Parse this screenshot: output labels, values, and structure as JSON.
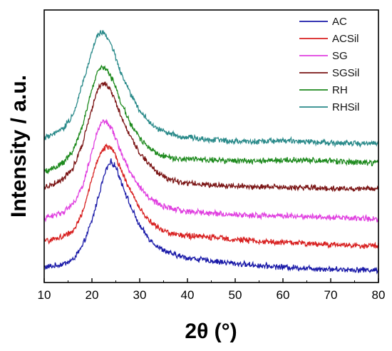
{
  "chart_data": {
    "type": "line",
    "xlabel": "2θ (°)",
    "ylabel": "Intensity / a.u.",
    "xlim": [
      10,
      80
    ],
    "xticks": [
      "10",
      "20",
      "30",
      "40",
      "50",
      "60",
      "70",
      "80"
    ],
    "yticks_shown": false,
    "grid": false,
    "legend_position": "top-right",
    "x": [
      10,
      12,
      14,
      16,
      18,
      20,
      21,
      22,
      23,
      24,
      25,
      26,
      28,
      30,
      32,
      34,
      36,
      38,
      40,
      45,
      50,
      55,
      60,
      65,
      70,
      75,
      80
    ],
    "series": [
      {
        "name": "AC",
        "color": "#1a1aa8",
        "values": [
          0.3,
          0.32,
          0.36,
          0.44,
          0.7,
          1.2,
          1.55,
          1.9,
          2.2,
          2.35,
          2.25,
          2.0,
          1.5,
          1.1,
          0.85,
          0.68,
          0.58,
          0.52,
          0.48,
          0.42,
          0.37,
          0.33,
          0.3,
          0.28,
          0.26,
          0.25,
          0.24
        ]
      },
      {
        "name": "ACSil",
        "color": "#d82020",
        "values": [
          0.8,
          0.84,
          0.9,
          1.0,
          1.35,
          2.0,
          2.35,
          2.55,
          2.65,
          2.62,
          2.45,
          2.2,
          1.8,
          1.45,
          1.2,
          1.05,
          0.97,
          0.93,
          0.91,
          0.88,
          0.84,
          0.8,
          0.78,
          0.76,
          0.74,
          0.72,
          0.71
        ]
      },
      {
        "name": "SG",
        "color": "#e040e0",
        "values": [
          1.25,
          1.3,
          1.38,
          1.52,
          1.85,
          2.55,
          2.9,
          3.1,
          3.12,
          3.02,
          2.8,
          2.55,
          2.15,
          1.85,
          1.65,
          1.52,
          1.45,
          1.41,
          1.38,
          1.35,
          1.32,
          1.3,
          1.3,
          1.29,
          1.27,
          1.25,
          1.24
        ]
      },
      {
        "name": "SGSil",
        "color": "#7a1414",
        "values": [
          1.85,
          1.92,
          2.02,
          2.22,
          2.7,
          3.4,
          3.72,
          3.88,
          3.85,
          3.72,
          3.5,
          3.25,
          2.85,
          2.52,
          2.3,
          2.12,
          2.02,
          1.96,
          1.93,
          1.9,
          1.88,
          1.86,
          1.85,
          1.84,
          1.83,
          1.82,
          1.82
        ]
      },
      {
        "name": "RH",
        "color": "#1e8a1e",
        "values": [
          2.15,
          2.22,
          2.33,
          2.55,
          3.05,
          3.75,
          4.05,
          4.2,
          4.15,
          4.0,
          3.78,
          3.52,
          3.1,
          2.8,
          2.62,
          2.5,
          2.44,
          2.41,
          2.4,
          2.38,
          2.36,
          2.36,
          2.38,
          2.38,
          2.36,
          2.34,
          2.32
        ]
      },
      {
        "name": "RHSil",
        "color": "#2a8a8a",
        "values": [
          2.8,
          2.88,
          3.0,
          3.25,
          3.85,
          4.5,
          4.78,
          4.88,
          4.8,
          4.62,
          4.38,
          4.1,
          3.68,
          3.35,
          3.12,
          2.98,
          2.9,
          2.85,
          2.82,
          2.78,
          2.75,
          2.74,
          2.76,
          2.74,
          2.72,
          2.7,
          2.7
        ]
      }
    ]
  }
}
